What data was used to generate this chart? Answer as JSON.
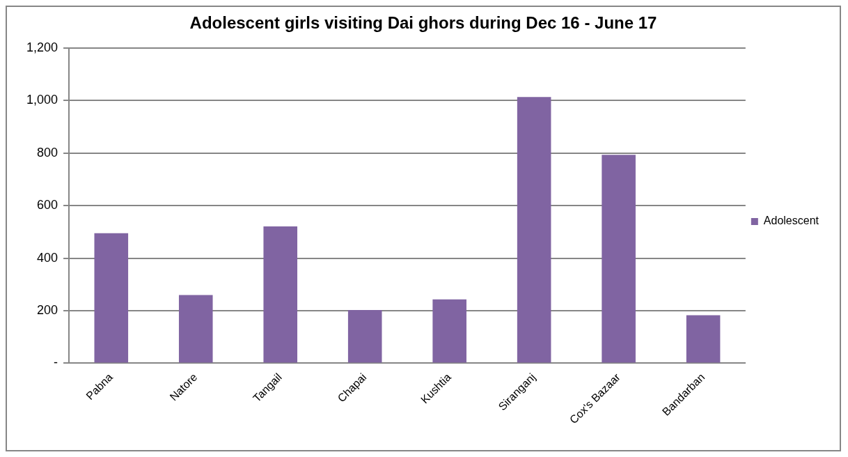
{
  "chart_data": {
    "type": "bar",
    "title": "Adolescent girls visiting Dai ghors during Dec 16 - June 17",
    "categories": [
      "Pabna",
      "Natore",
      "Tangail",
      "Chapai",
      "Kushtia",
      "Siranganj",
      "Cox's Bazaar",
      "Bandarban"
    ],
    "series": [
      {
        "name": "Adolescent",
        "color": "#8064a2",
        "values": [
          495,
          260,
          521,
          203,
          243,
          1013,
          793,
          183
        ]
      }
    ],
    "ylim": [
      0,
      1200
    ],
    "yticks": [
      {
        "value": 0,
        "label": "-"
      },
      200,
      400,
      600,
      800,
      {
        "value": 1000,
        "label": "1,000"
      },
      {
        "value": 1200,
        "label": "1,200"
      }
    ],
    "grid": "y",
    "legend": "right"
  }
}
